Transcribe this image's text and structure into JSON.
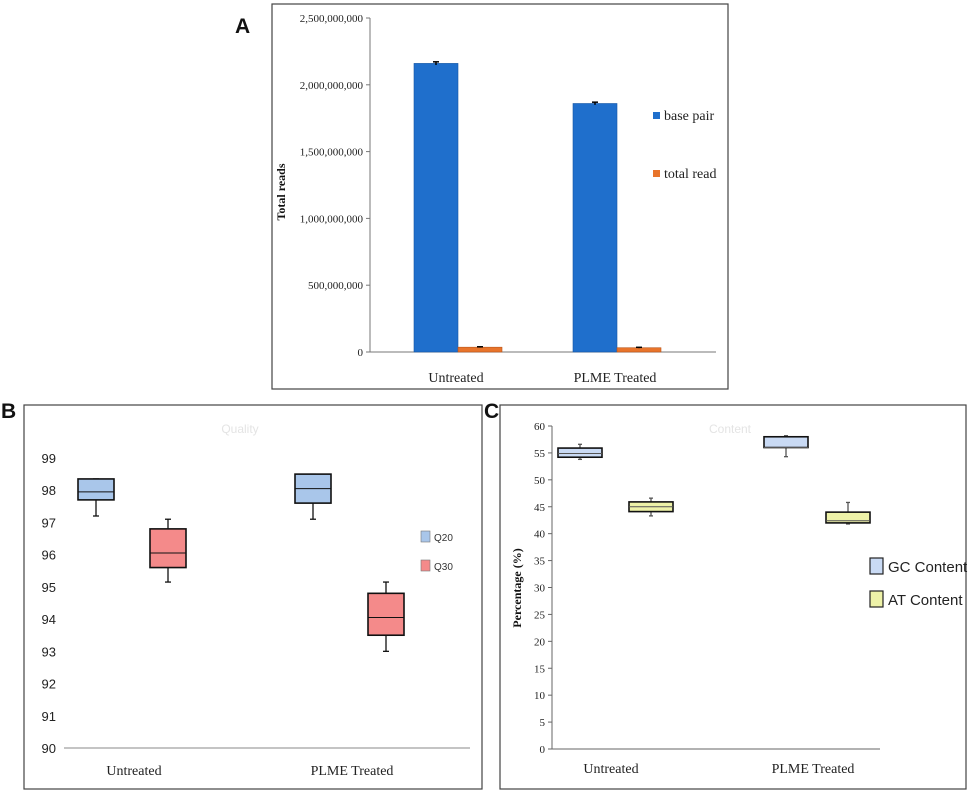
{
  "panels": {
    "a": "A",
    "b": "B",
    "c": "C"
  },
  "chart_data": [
    {
      "type": "bar",
      "title": "",
      "xlabel": "",
      "ylabel": "Total reads",
      "categories": [
        "Untreated",
        "PLME Treated"
      ],
      "ylim": [
        0,
        2500000000
      ],
      "yticks": [
        "0",
        "500,000,000",
        "1,000,000,000",
        "1,500,000,000",
        "2,000,000,000",
        "2,500,000,000"
      ],
      "series": [
        {
          "name": "base pair",
          "color": "#1f6fcc",
          "values": [
            2160000000,
            1860000000
          ],
          "errors": [
            12000000,
            10000000
          ]
        },
        {
          "name": "total read",
          "color": "#e8742b",
          "values": [
            36000000,
            32000000
          ],
          "errors": [
            3000000,
            3000000
          ]
        }
      ]
    },
    {
      "type": "box",
      "title": "Quality",
      "xlabel": "",
      "ylabel": "",
      "categories": [
        "Untreated",
        "PLME Treated"
      ],
      "ylim": [
        90,
        99
      ],
      "yticks": [
        "90",
        "91",
        "92",
        "93",
        "94",
        "95",
        "96",
        "97",
        "98",
        "99"
      ],
      "series": [
        {
          "name": "Q20",
          "color": "#a9c6ea",
          "boxes": [
            {
              "min": 97.2,
              "q1": 97.7,
              "median": 97.95,
              "q3": 98.35,
              "max": 98.35
            },
            {
              "min": 97.1,
              "q1": 97.6,
              "median": 98.05,
              "q3": 98.5,
              "max": 98.5
            }
          ]
        },
        {
          "name": "Q30",
          "color": "#f48a8a",
          "boxes": [
            {
              "min": 95.15,
              "q1": 95.6,
              "median": 96.05,
              "q3": 96.8,
              "max": 97.1
            },
            {
              "min": 93.0,
              "q1": 93.5,
              "median": 94.05,
              "q3": 94.8,
              "max": 95.15
            }
          ]
        }
      ]
    },
    {
      "type": "box",
      "title": "Content",
      "xlabel": "",
      "ylabel": "Percentage (%)",
      "categories": [
        "Untreated",
        "PLME Treated"
      ],
      "ylim": [
        0,
        60
      ],
      "yticks": [
        "0",
        "5",
        "10",
        "15",
        "20",
        "25",
        "30",
        "35",
        "40",
        "45",
        "50",
        "55",
        "60"
      ],
      "series": [
        {
          "name": "GC Content",
          "color": "#c9daf4",
          "boxes": [
            {
              "min": 53.8,
              "q1": 54.2,
              "median": 54.9,
              "q3": 55.9,
              "max": 56.6
            },
            {
              "min": 54.3,
              "q1": 56.0,
              "median": 56.0,
              "q3": 58.0,
              "max": 58.2
            }
          ]
        },
        {
          "name": "AT Content",
          "color": "#eef2a8",
          "boxes": [
            {
              "min": 43.3,
              "q1": 44.1,
              "median": 45.0,
              "q3": 45.9,
              "max": 46.6
            },
            {
              "min": 41.8,
              "q1": 42.0,
              "median": 42.4,
              "q3": 44.0,
              "max": 45.8
            }
          ]
        }
      ]
    }
  ]
}
